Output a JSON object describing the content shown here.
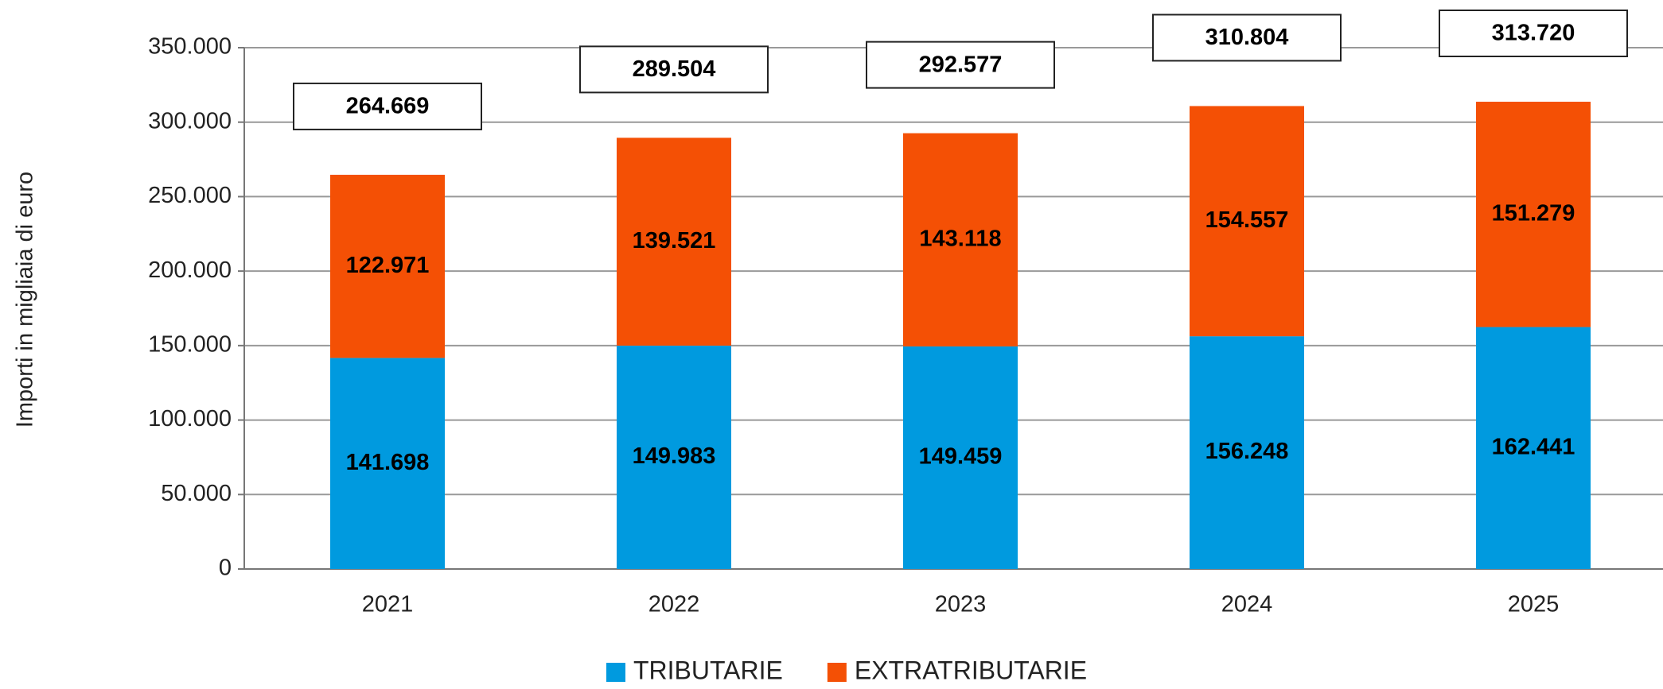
{
  "chart_data": {
    "type": "stacked_bar",
    "y_label": "Importi in migliaia di euro",
    "categories": [
      "2021",
      "2022",
      "2023",
      "2024",
      "2025"
    ],
    "series": [
      {
        "name": "TRIBUTARIE",
        "color": "#009adf",
        "values": [
          141698,
          149983,
          149459,
          156248,
          162441
        ],
        "value_labels": [
          "141.698",
          "149.983",
          "149.459",
          "156.248",
          "162.441"
        ]
      },
      {
        "name": "EXTRATRIBUTARIE",
        "color": "#f45005",
        "values": [
          122971,
          139521,
          143118,
          154557,
          151279
        ],
        "value_labels": [
          "122.971",
          "139.521",
          "143.118",
          "154.557",
          "151.279"
        ]
      }
    ],
    "totals": {
      "values": [
        264669,
        289504,
        292577,
        310804,
        313720
      ],
      "value_labels": [
        "264.669",
        "289.504",
        "292.577",
        "310.804",
        "313.720"
      ]
    },
    "ylim": [
      0,
      350000
    ],
    "yticks": [
      0,
      {
        "value": 50000,
        "label": "50.000"
      },
      {
        "value": 100000,
        "label": "100.000"
      },
      {
        "value": 150000,
        "label": "150.000"
      },
      {
        "value": 200000,
        "label": "200.000"
      },
      {
        "value": 250000,
        "label": "250.000"
      },
      {
        "value": 300000,
        "label": "300.000"
      },
      {
        "value": 350000,
        "label": "350.000"
      }
    ],
    "grid": true
  }
}
